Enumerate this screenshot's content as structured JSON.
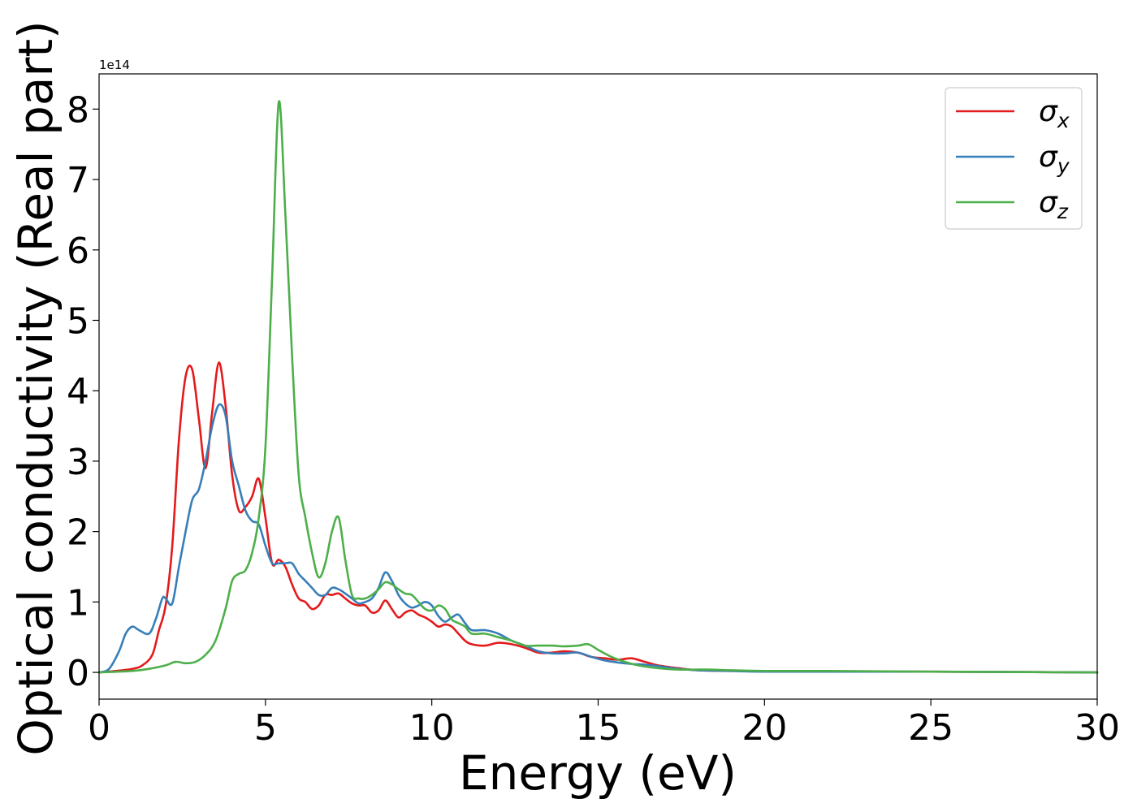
{
  "chart_data": {
    "type": "line",
    "title": "",
    "xlabel": "Energy (eV)",
    "ylabel": "Optical conductivity (Real part)",
    "y_offset_label": "1e14",
    "xlim": [
      0,
      30
    ],
    "ylim": [
      -0.38,
      8.5
    ],
    "xticks": [
      0,
      5,
      10,
      15,
      20,
      25,
      30
    ],
    "yticks": [
      0,
      1,
      2,
      3,
      4,
      5,
      6,
      7,
      8
    ],
    "grid": false,
    "legend_position": "top-right",
    "series": [
      {
        "name": "σx",
        "symbol": "σ",
        "subscript": "x",
        "color": "#e41a1c",
        "x": [
          0,
          0.5,
          1,
          1.3,
          1.6,
          1.8,
          2.0,
          2.2,
          2.4,
          2.6,
          2.8,
          3.0,
          3.2,
          3.4,
          3.6,
          3.8,
          4.0,
          4.2,
          4.4,
          4.6,
          4.8,
          5.0,
          5.2,
          5.4,
          5.6,
          5.8,
          6.0,
          6.2,
          6.4,
          6.6,
          6.8,
          7.0,
          7.2,
          7.4,
          7.6,
          7.8,
          8.0,
          8.2,
          8.4,
          8.6,
          8.8,
          9.0,
          9.2,
          9.4,
          9.6,
          9.8,
          10.0,
          10.2,
          10.4,
          10.6,
          10.8,
          11.0,
          11.2,
          11.6,
          12.0,
          12.4,
          12.8,
          13.2,
          13.6,
          14.0,
          14.4,
          14.8,
          15.2,
          15.6,
          16.0,
          16.4,
          16.8,
          17.4,
          18.0,
          19,
          20,
          22,
          25,
          30
        ],
        "y": [
          0,
          0.02,
          0.05,
          0.1,
          0.25,
          0.6,
          0.95,
          1.8,
          3.3,
          4.2,
          4.3,
          3.6,
          2.9,
          3.7,
          4.4,
          3.8,
          2.8,
          2.3,
          2.35,
          2.5,
          2.75,
          2.2,
          1.55,
          1.6,
          1.5,
          1.25,
          1.05,
          1.0,
          0.9,
          0.95,
          1.1,
          1.1,
          1.12,
          1.05,
          0.98,
          0.95,
          0.95,
          0.85,
          0.88,
          1.02,
          0.9,
          0.78,
          0.85,
          0.88,
          0.82,
          0.78,
          0.72,
          0.65,
          0.68,
          0.65,
          0.55,
          0.45,
          0.4,
          0.38,
          0.42,
          0.4,
          0.35,
          0.28,
          0.28,
          0.3,
          0.28,
          0.22,
          0.2,
          0.18,
          0.2,
          0.15,
          0.1,
          0.06,
          0.03,
          0.02,
          0.02,
          0.01,
          0.01,
          0.0
        ]
      },
      {
        "name": "σy",
        "symbol": "σ",
        "subscript": "y",
        "color": "#377eb8",
        "x": [
          0,
          0.3,
          0.6,
          0.8,
          1.0,
          1.2,
          1.5,
          1.7,
          1.9,
          2.0,
          2.2,
          2.4,
          2.6,
          2.8,
          3.0,
          3.2,
          3.4,
          3.6,
          3.8,
          4.0,
          4.2,
          4.4,
          4.6,
          4.8,
          5.0,
          5.2,
          5.4,
          5.6,
          5.8,
          6.0,
          6.2,
          6.4,
          6.6,
          6.8,
          7.0,
          7.2,
          7.4,
          7.6,
          7.8,
          8.0,
          8.2,
          8.4,
          8.6,
          8.8,
          9.0,
          9.2,
          9.4,
          9.6,
          9.8,
          10.0,
          10.2,
          10.4,
          10.6,
          10.8,
          11.0,
          11.2,
          11.6,
          12.0,
          12.4,
          12.8,
          13.2,
          13.6,
          14.0,
          14.4,
          14.8,
          15.2,
          15.6,
          16.0,
          16.4,
          16.8,
          17.4,
          18.0,
          19,
          20,
          22,
          25,
          30
        ],
        "y": [
          0,
          0.05,
          0.3,
          0.55,
          0.65,
          0.6,
          0.55,
          0.75,
          1.05,
          1.05,
          0.98,
          1.5,
          2.0,
          2.45,
          2.6,
          3.0,
          3.5,
          3.8,
          3.65,
          3.0,
          2.65,
          2.3,
          2.15,
          2.1,
          1.8,
          1.55,
          1.55,
          1.55,
          1.55,
          1.4,
          1.3,
          1.2,
          1.1,
          1.1,
          1.2,
          1.18,
          1.12,
          1.05,
          0.98,
          1.0,
          1.05,
          1.2,
          1.42,
          1.3,
          1.1,
          0.98,
          0.92,
          0.95,
          1.0,
          0.95,
          0.8,
          0.72,
          0.78,
          0.82,
          0.7,
          0.6,
          0.6,
          0.55,
          0.45,
          0.38,
          0.3,
          0.27,
          0.27,
          0.28,
          0.22,
          0.17,
          0.14,
          0.12,
          0.11,
          0.09,
          0.05,
          0.03,
          0.02,
          0.01,
          0.01,
          0.01,
          0.0
        ]
      },
      {
        "name": "σz",
        "symbol": "σ",
        "subscript": "z",
        "color": "#4daf4a",
        "x": [
          0,
          1,
          1.5,
          2.0,
          2.3,
          2.6,
          2.9,
          3.2,
          3.5,
          3.8,
          4.0,
          4.2,
          4.4,
          4.6,
          4.8,
          5.0,
          5.2,
          5.4,
          5.6,
          5.8,
          6.0,
          6.2,
          6.4,
          6.6,
          6.8,
          7.0,
          7.2,
          7.4,
          7.6,
          7.8,
          8.0,
          8.2,
          8.4,
          8.6,
          8.8,
          9.0,
          9.2,
          9.4,
          9.6,
          9.8,
          10.0,
          10.2,
          10.4,
          10.6,
          10.8,
          11.0,
          11.2,
          11.6,
          12.0,
          12.4,
          12.8,
          13.2,
          13.6,
          14.0,
          14.4,
          14.7,
          15.0,
          15.4,
          15.8,
          16.2,
          16.8,
          17.4,
          18.2,
          19,
          20,
          22,
          25,
          30
        ],
        "y": [
          0,
          0.02,
          0.05,
          0.1,
          0.15,
          0.13,
          0.15,
          0.25,
          0.45,
          0.9,
          1.3,
          1.4,
          1.45,
          1.7,
          2.2,
          3.2,
          5.6,
          8.1,
          6.5,
          4.5,
          2.8,
          2.2,
          1.7,
          1.35,
          1.55,
          2.0,
          2.2,
          1.6,
          1.1,
          1.05,
          1.05,
          1.1,
          1.18,
          1.28,
          1.25,
          1.18,
          1.12,
          1.1,
          1.0,
          0.9,
          0.88,
          0.95,
          0.9,
          0.75,
          0.7,
          0.65,
          0.55,
          0.55,
          0.5,
          0.45,
          0.38,
          0.38,
          0.38,
          0.37,
          0.38,
          0.4,
          0.32,
          0.22,
          0.15,
          0.1,
          0.06,
          0.04,
          0.04,
          0.03,
          0.02,
          0.02,
          0.01,
          0.0
        ]
      }
    ]
  }
}
